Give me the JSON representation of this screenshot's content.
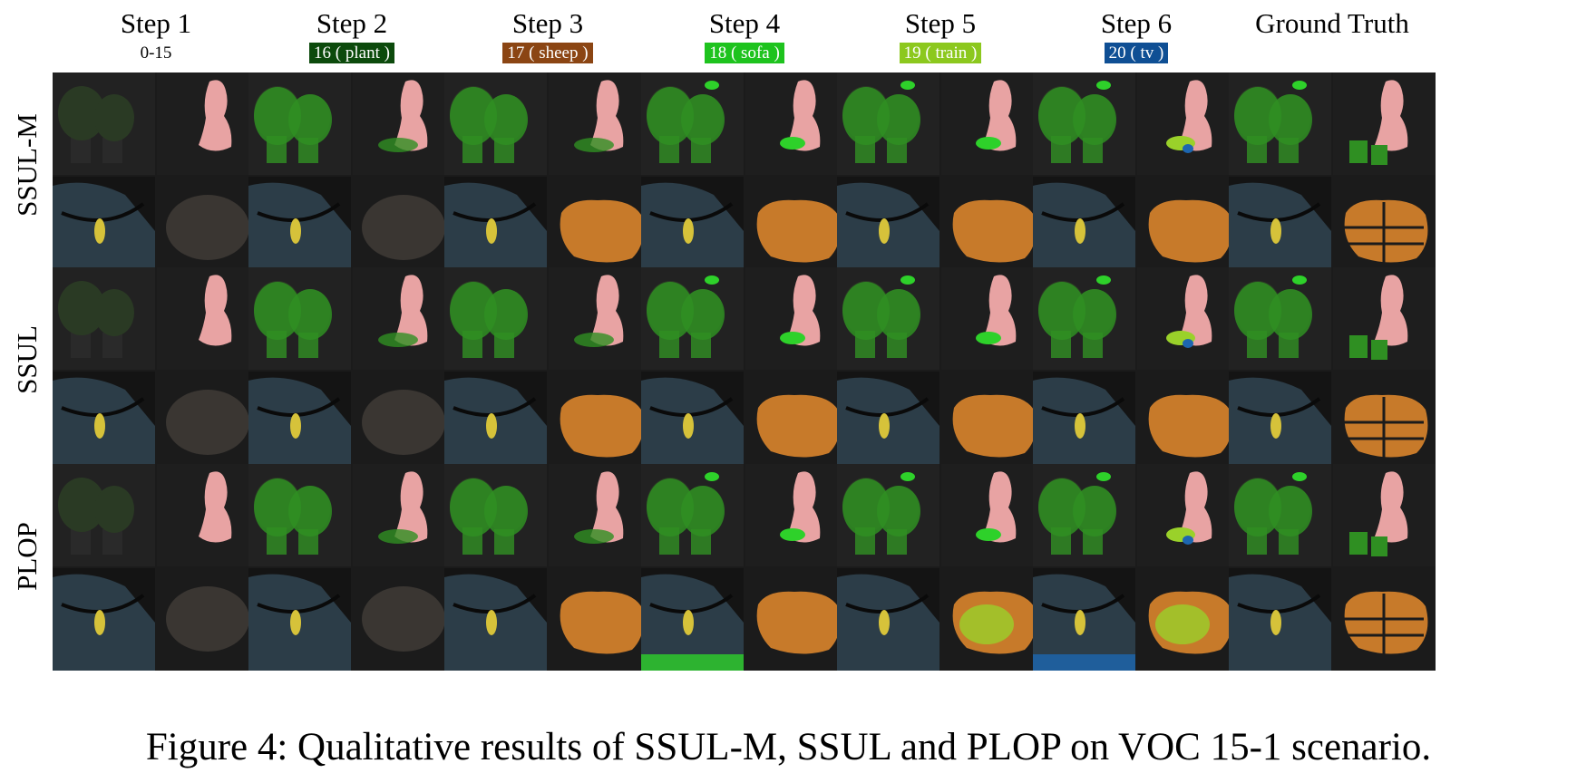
{
  "columns": [
    {
      "title": "Step 1",
      "tag": "0-15",
      "tag_color": ""
    },
    {
      "title": "Step 2",
      "tag": "16 ( plant )",
      "tag_color": "#0c4a0c"
    },
    {
      "title": "Step 3",
      "tag": "17 ( sheep )",
      "tag_color": "#8b4513"
    },
    {
      "title": "Step 4",
      "tag": "18 ( sofa )",
      "tag_color": "#1ec31e"
    },
    {
      "title": "Step 5",
      "tag": "19 ( train )",
      "tag_color": "#8cc81e"
    },
    {
      "title": "Step 6",
      "tag": "20 ( tv )",
      "tag_color": "#0f4f94"
    },
    {
      "title": "Ground Truth",
      "tag": "",
      "tag_color": ""
    }
  ],
  "rows": [
    "SSUL-M",
    "SSUL",
    "PLOP"
  ],
  "caption": "Figure 4: Qualitative results of SSUL-M, SSUL and PLOP on VOC 15-1 scenario.",
  "colors": {
    "plant": "#2f8f22",
    "sheep": "#c77a2a",
    "sofa": "#2ed12a",
    "train": "#9ad12a",
    "tv": "#1d66b0",
    "person": "#e8a3a3",
    "bird": "#d6c23a",
    "background_dark": "#1b1b1b",
    "water": "#2c3d48"
  }
}
